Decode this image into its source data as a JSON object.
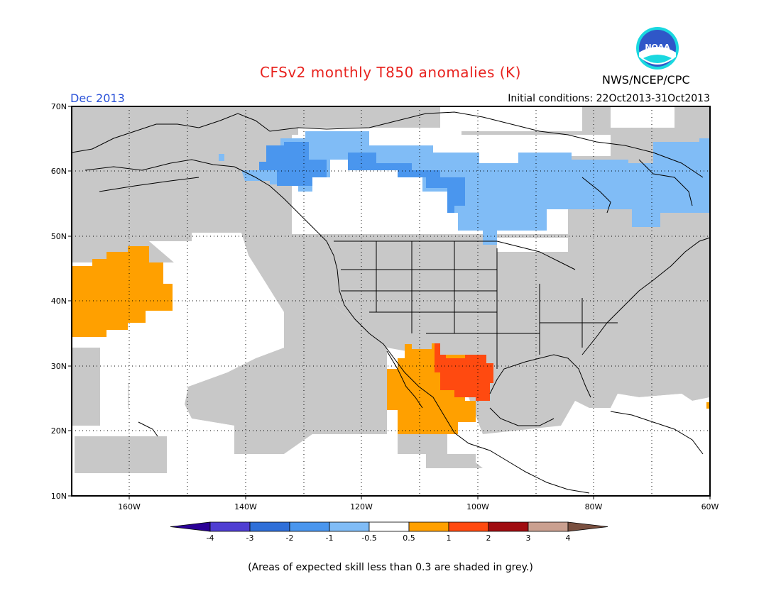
{
  "title": "CFSv2 monthly T850 anomalies (K)",
  "org": "NWS/NCEP/CPC",
  "logo_text": "NOAA",
  "target_month": "Dec 2013",
  "initial_conditions": "Initial conditions: 22Oct2013-31Oct2013",
  "footnote": "(Areas of expected skill less than 0.3 are shaded in grey.)",
  "map": {
    "lon_range": [
      -170,
      -60
    ],
    "lat_range": [
      10,
      70
    ],
    "lat_labels": [
      "10N",
      "20N",
      "30N",
      "40N",
      "50N",
      "60N",
      "70N"
    ],
    "lon_labels": [
      "160W",
      "140W",
      "120W",
      "100W",
      "80W",
      "60W"
    ],
    "grey_color": "#c8c8c8"
  },
  "legend": {
    "labels": [
      "-4",
      "-3",
      "-2",
      "-1",
      "-0.5",
      "0.5",
      "1",
      "2",
      "3",
      "4"
    ],
    "colors": [
      "#2a0096",
      "#4f3ed2",
      "#2f6fd8",
      "#4a96ee",
      "#80bcf6",
      "#ffffff",
      "#ffa000",
      "#ff4a10",
      "#a00c10",
      "#caa090",
      "#7a5040"
    ]
  }
}
